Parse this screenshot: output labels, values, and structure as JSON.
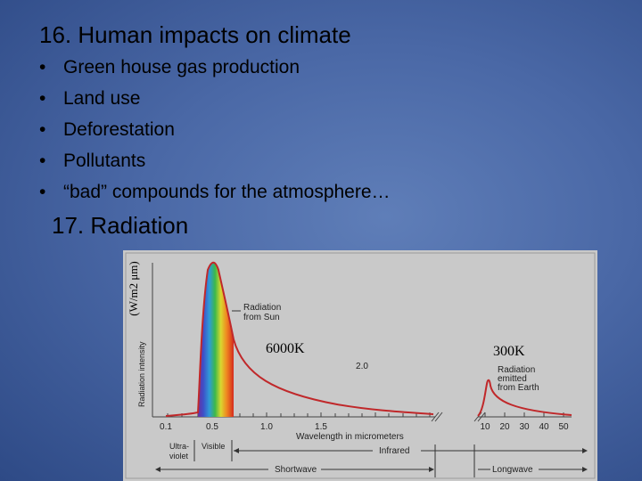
{
  "slide": {
    "title": "16. Human impacts on climate",
    "bullets": [
      "Green house gas production",
      "Land use",
      "Deforestation",
      "Pollutants",
      "“bad” compounds for the atmosphere…"
    ],
    "bullet_char": "•",
    "subtitle": "17. Radiation"
  },
  "figure": {
    "ylabel_printed": "Radiation intensity",
    "ylabel_handwritten": "(W/m2 μm)",
    "xlabel": "Wavelength in micrometers",
    "sun_label_line1": "Radiation",
    "sun_label_line2": "from Sun",
    "earth_label_line1": "Radiation",
    "earth_label_line2": "emitted",
    "earth_label_line3": "from Earth",
    "sun_temp": "6000K",
    "earth_temp": "300K",
    "tick_labels": [
      "0.1",
      "0.5",
      "1.0",
      "1.5",
      "2.0",
      "10",
      "20",
      "30",
      "40",
      "50"
    ],
    "bands": {
      "ultraviolet": [
        "Ultra-",
        "violet"
      ],
      "visible": "Visible",
      "infrared": "Infrared",
      "shortwave": "Shortwave",
      "longwave": "Longwave"
    },
    "colors": {
      "panel": "#c8c8c8",
      "curve": "#c0282a",
      "axis": "#444444"
    }
  }
}
